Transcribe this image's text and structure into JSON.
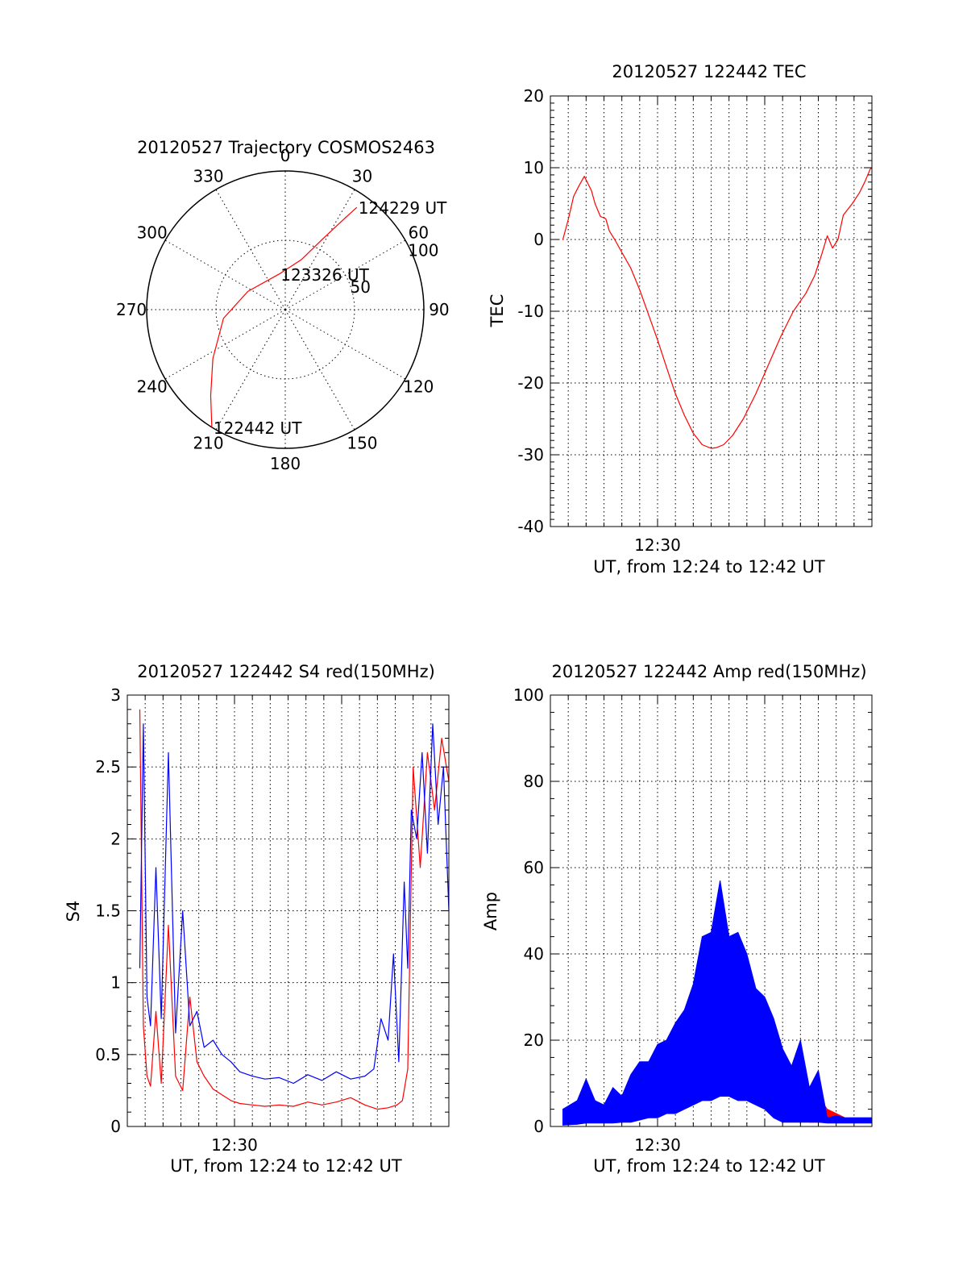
{
  "chart_data": [
    {
      "type": "polar",
      "title": "20120527 Trajectory COSMOS2463",
      "azimuth_labels": [
        "0",
        "30",
        "60",
        "90",
        "120",
        "150",
        "180",
        "210",
        "240",
        "270",
        "300",
        "330"
      ],
      "elevation_labels": [
        "50",
        "100"
      ],
      "series": [
        {
          "color": "#ff0000",
          "points": [
            {
              "az": 212,
              "r": 100
            },
            {
              "az": 221,
              "r": 82
            },
            {
              "az": 236,
              "r": 63
            },
            {
              "az": 262,
              "r": 45
            },
            {
              "az": 296,
              "r": 30
            },
            {
              "az": 350,
              "r": 26
            },
            {
              "az": 18,
              "r": 38
            },
            {
              "az": 28,
              "r": 58
            },
            {
              "az": 33,
              "r": 78
            },
            {
              "az": 35,
              "r": 90
            }
          ]
        }
      ],
      "annotations": [
        {
          "text": "124229 UT",
          "az": 35,
          "r": 90
        },
        {
          "text": "123326 UT",
          "az": 350,
          "r": 26
        },
        {
          "text": "122442 UT",
          "az": 212,
          "r": 100
        }
      ]
    },
    {
      "type": "line",
      "title": "20120527 122442 TEC",
      "xlabel": "UT, from 12:24 to 12:42 UT",
      "ylabel": "TEC",
      "xlim": [
        0,
        18
      ],
      "ylim": [
        -40,
        20
      ],
      "yticks": [
        "-40",
        "-30",
        "-20",
        "-10",
        "0",
        "10",
        "20"
      ],
      "xticks": [
        {
          "label": "12:30",
          "value": 6
        }
      ],
      "grid": true,
      "series": [
        {
          "color": "#ff0000",
          "x": [
            0.7,
            1.0,
            1.3,
            1.6,
            1.9,
            2.3,
            2.5,
            2.8,
            3.1,
            3.3,
            3.6,
            4.0,
            4.5,
            5.0,
            5.5,
            6.0,
            6.5,
            7.0,
            7.5,
            8.0,
            8.5,
            9.0,
            9.3,
            9.7,
            10.2,
            10.8,
            11.5,
            12.2,
            12.9,
            13.6,
            14.3,
            14.8,
            15.2,
            15.5,
            15.8,
            16.1,
            16.4,
            16.9,
            17.3,
            17.6,
            17.9,
            18.0
          ],
          "y": [
            0,
            2.8,
            6,
            7.5,
            8.8,
            6.8,
            5,
            3.2,
            2.9,
            1.2,
            0,
            -1.8,
            -4,
            -7,
            -10.5,
            -14,
            -17.8,
            -21.5,
            -24.5,
            -27,
            -28.6,
            -29.1,
            -29.0,
            -28.6,
            -27.3,
            -25,
            -21.5,
            -17.5,
            -13.5,
            -10,
            -7.5,
            -5,
            -2,
            0.5,
            -1.2,
            0,
            3.4,
            5,
            6.5,
            8,
            9.8,
            10
          ]
        }
      ]
    },
    {
      "type": "line",
      "title": "20120527 122442 S4 red(150MHz)",
      "xlabel": "UT, from 12:24 to 12:42 UT",
      "ylabel": "S4",
      "xlim": [
        0,
        18
      ],
      "ylim": [
        0,
        3
      ],
      "yticks": [
        "0",
        "0.5",
        "1",
        "1.5",
        "2",
        "2.5",
        "3"
      ],
      "xticks": [
        {
          "label": "12:30",
          "value": 6
        }
      ],
      "grid": true,
      "series": [
        {
          "color": "#ff0000",
          "x": [
            0.7,
            0.9,
            1.1,
            1.3,
            1.6,
            1.9,
            2.3,
            2.7,
            3.1,
            3.5,
            3.9,
            4.3,
            4.8,
            5.3,
            5.8,
            6.3,
            7.0,
            7.7,
            8.5,
            9.3,
            10.1,
            10.9,
            11.7,
            12.5,
            13.3,
            14.0,
            14.6,
            15.1,
            15.4,
            15.7,
            16.0,
            16.4,
            16.8,
            17.2,
            17.6,
            18.0
          ],
          "y": [
            2.9,
            0.7,
            0.35,
            0.28,
            0.8,
            0.3,
            1.4,
            0.35,
            0.25,
            0.9,
            0.45,
            0.35,
            0.26,
            0.22,
            0.18,
            0.16,
            0.15,
            0.14,
            0.15,
            0.14,
            0.17,
            0.15,
            0.17,
            0.2,
            0.15,
            0.12,
            0.13,
            0.15,
            0.18,
            0.4,
            2.5,
            1.8,
            2.6,
            2.2,
            2.7,
            2.4
          ]
        },
        {
          "color": "#0000ff",
          "x": [
            0.7,
            0.9,
            1.1,
            1.3,
            1.6,
            1.9,
            2.3,
            2.7,
            3.1,
            3.5,
            3.9,
            4.3,
            4.8,
            5.3,
            5.8,
            6.3,
            7.0,
            7.7,
            8.5,
            9.3,
            10.1,
            10.9,
            11.7,
            12.5,
            13.3,
            13.8,
            14.2,
            14.6,
            14.9,
            15.2,
            15.5,
            15.7,
            15.9,
            16.2,
            16.5,
            16.8,
            17.1,
            17.4,
            17.7,
            18.0
          ],
          "y": [
            1.1,
            2.8,
            0.9,
            0.7,
            1.8,
            0.75,
            2.6,
            0.65,
            1.5,
            0.7,
            0.8,
            0.55,
            0.6,
            0.5,
            0.45,
            0.38,
            0.35,
            0.33,
            0.34,
            0.3,
            0.36,
            0.32,
            0.38,
            0.33,
            0.35,
            0.4,
            0.75,
            0.6,
            1.2,
            0.45,
            1.7,
            1.1,
            2.2,
            2.0,
            2.6,
            1.9,
            2.8,
            2.1,
            2.5,
            1.5
          ]
        }
      ]
    },
    {
      "type": "line",
      "title": "20120527 122442 Amp red(150MHz)",
      "xlabel": "UT, from 12:24 to 12:42 UT",
      "ylabel": "Amp",
      "xlim": [
        0,
        18
      ],
      "ylim": [
        0,
        100
      ],
      "yticks": [
        "0",
        "20",
        "40",
        "60",
        "80",
        "100"
      ],
      "xticks": [
        {
          "label": "12:30",
          "value": 6
        }
      ],
      "grid": true,
      "series": [
        {
          "color": "#ff0000",
          "style": "band",
          "x": [
            0.7,
            1.5,
            2.0,
            2.5,
            3.0,
            3.5,
            4.0,
            4.5,
            5.0,
            5.5,
            6.0,
            6.5,
            7.0,
            7.5,
            8.0,
            8.5,
            9.0,
            9.5,
            10.0,
            10.5,
            11.0,
            11.5,
            12.0,
            12.5,
            13.0,
            13.5,
            14.0,
            14.5,
            15.0,
            15.5,
            16.0,
            16.5,
            17.0,
            17.5,
            18.0
          ],
          "low": [
            0.5,
            0.5,
            1,
            1,
            1,
            1,
            1.5,
            2,
            2,
            3,
            3,
            4,
            5,
            6,
            7,
            8,
            9,
            9,
            9,
            8,
            8,
            7,
            5,
            3,
            2,
            2,
            2,
            1,
            1,
            1,
            1,
            1,
            1,
            1,
            1
          ],
          "high": [
            3,
            5,
            9,
            6,
            4,
            8,
            6,
            9,
            12,
            11,
            14,
            17,
            20,
            24,
            29,
            38,
            40,
            39,
            36,
            34,
            30,
            26,
            21,
            16,
            12,
            10,
            14,
            9,
            7,
            4,
            3,
            2,
            2,
            2,
            2
          ]
        },
        {
          "color": "#0000ff",
          "style": "band",
          "x": [
            0.7,
            1.5,
            2.0,
            2.5,
            3.0,
            3.5,
            4.0,
            4.5,
            5.0,
            5.5,
            6.0,
            6.5,
            7.0,
            7.5,
            8.0,
            8.5,
            9.0,
            9.5,
            10.0,
            10.5,
            11.0,
            11.5,
            12.0,
            12.5,
            13.0,
            13.5,
            14.0,
            14.5,
            15.0,
            15.5,
            16.0,
            16.5,
            17.0,
            17.5,
            18.0
          ],
          "low": [
            0.3,
            0.5,
            0.8,
            0.8,
            0.8,
            0.8,
            1,
            1,
            1.5,
            2,
            2,
            3,
            3,
            4,
            5,
            6,
            6,
            7,
            7,
            6,
            6,
            5,
            4,
            2,
            1,
            1,
            1,
            1,
            1,
            0.8,
            0.8,
            0.8,
            0.8,
            0.8,
            0.8
          ],
          "high": [
            4,
            6,
            11,
            6,
            5,
            9,
            7,
            12,
            15,
            15,
            19,
            20,
            24,
            27,
            33,
            44,
            45,
            57,
            44,
            45,
            40,
            32,
            30,
            25,
            18,
            14,
            20,
            9,
            13,
            2,
            2.5,
            2,
            2,
            2,
            2
          ]
        }
      ]
    }
  ]
}
